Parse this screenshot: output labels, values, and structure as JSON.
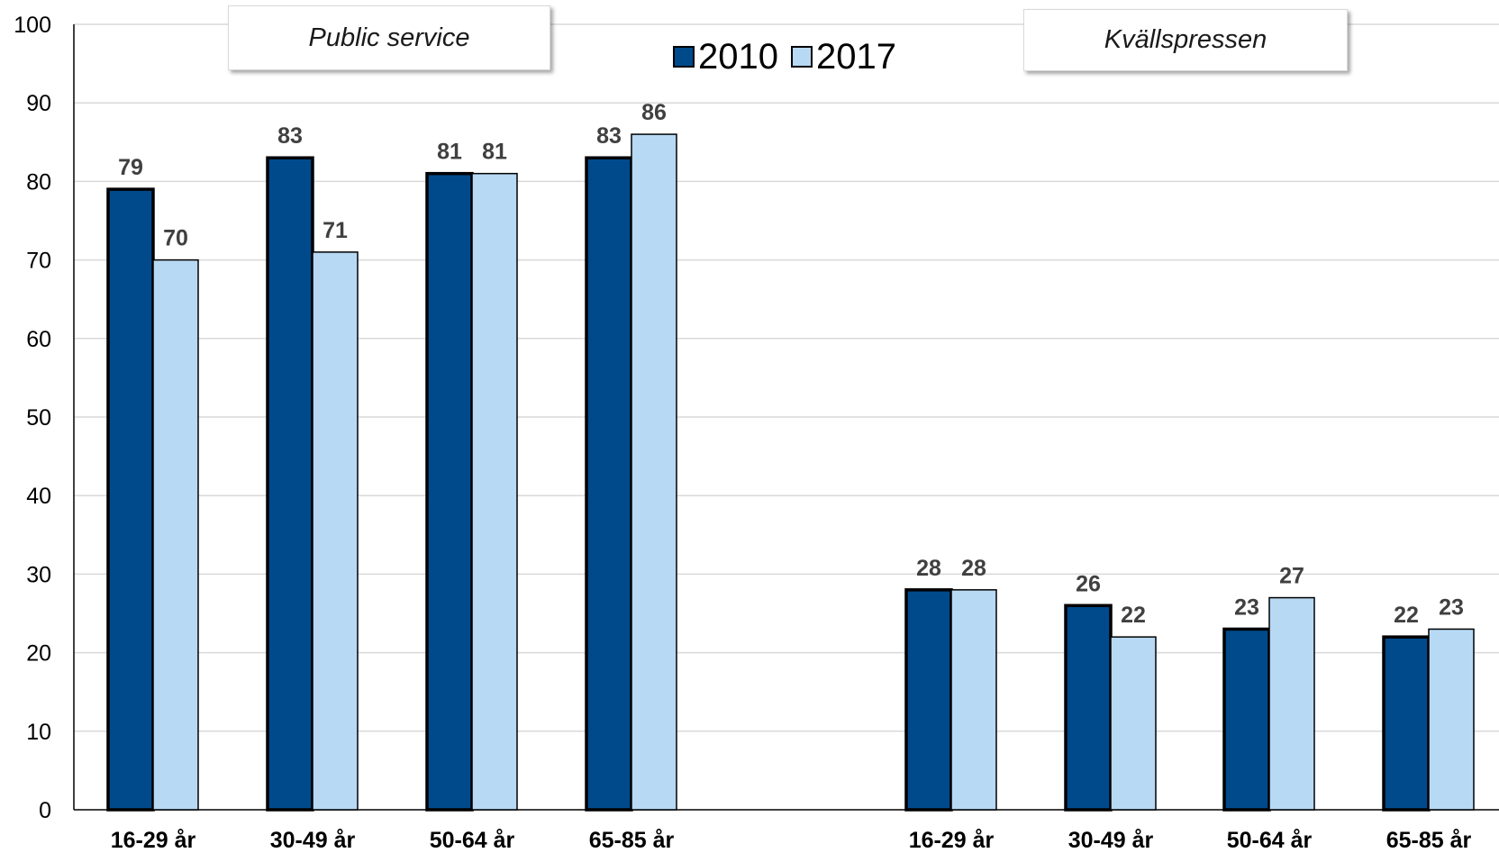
{
  "chart_data": {
    "type": "bar",
    "ylim": [
      0,
      100
    ],
    "yticks": [
      0,
      10,
      20,
      30,
      40,
      50,
      60,
      70,
      80,
      90,
      100
    ],
    "grid": true,
    "legend_position": "top-center",
    "colors": {
      "2010": "#004a8c",
      "2017": "#b7d9f4",
      "bar_border": "#000000",
      "grid": "#d9d9d9"
    },
    "series": [
      {
        "name": "2010"
      },
      {
        "name": "2017"
      }
    ],
    "panels": [
      {
        "label": "Public service",
        "categories": [
          "16-29 år",
          "30-49 år",
          "50-64 år",
          "65-85 år"
        ],
        "values_2010": [
          79,
          83,
          81,
          83
        ],
        "values_2017": [
          70,
          71,
          81,
          86
        ]
      },
      {
        "label": "Kvällspressen",
        "categories": [
          "16-29 år",
          "30-49 år",
          "50-64 år",
          "65-85 år"
        ],
        "values_2010": [
          28,
          26,
          23,
          22
        ],
        "values_2017": [
          28,
          22,
          27,
          23
        ]
      }
    ]
  }
}
